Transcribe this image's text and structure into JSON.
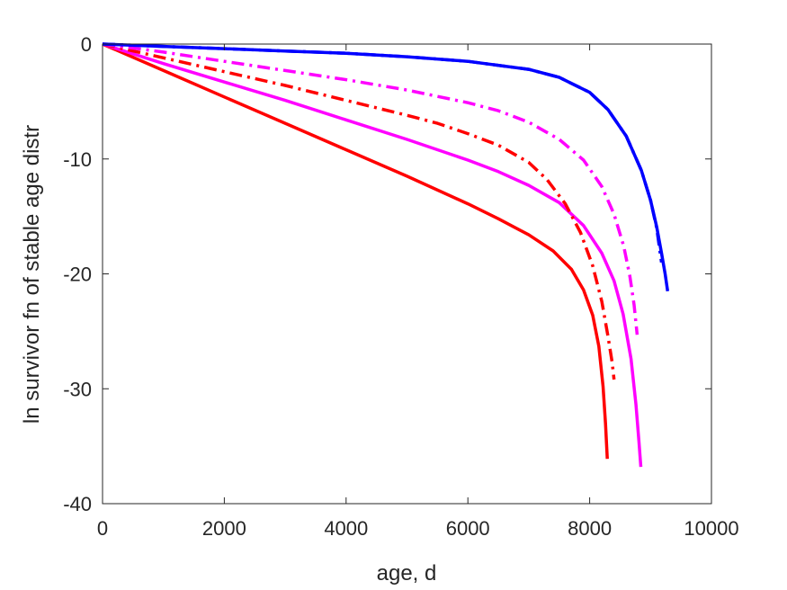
{
  "chart_data": {
    "type": "line",
    "title": "",
    "xlabel": "age, d",
    "ylabel": "ln survivor fn of stable age distr",
    "xlim": [
      0,
      10000
    ],
    "ylim": [
      -40,
      0
    ],
    "xticks": [
      0,
      2000,
      4000,
      6000,
      8000,
      10000
    ],
    "yticks": [
      -40,
      -30,
      -20,
      -10,
      0
    ],
    "xtick_labels": [
      "0",
      "2000",
      "4000",
      "6000",
      "8000",
      "10000"
    ],
    "ytick_labels": [
      "-40",
      "-30",
      "-20",
      "-10",
      "0"
    ],
    "grid": false,
    "legend": "none",
    "series": [
      {
        "color": "#ff0000",
        "style": "solid",
        "points": [
          [
            0,
            0
          ],
          [
            1000,
            -2.3
          ],
          [
            2000,
            -4.6
          ],
          [
            3000,
            -6.9
          ],
          [
            4000,
            -9.2
          ],
          [
            5000,
            -11.5
          ],
          [
            6000,
            -13.9
          ],
          [
            6500,
            -15.2
          ],
          [
            7000,
            -16.6
          ],
          [
            7400,
            -18.0
          ],
          [
            7700,
            -19.6
          ],
          [
            7900,
            -21.4
          ],
          [
            8050,
            -23.6
          ],
          [
            8150,
            -26.3
          ],
          [
            8220,
            -29.8
          ],
          [
            8260,
            -33.0
          ],
          [
            8290,
            -36.1
          ]
        ]
      },
      {
        "color": "#ff00ff",
        "style": "solid",
        "points": [
          [
            0,
            0
          ],
          [
            1000,
            -1.7
          ],
          [
            2000,
            -3.3
          ],
          [
            3000,
            -4.9
          ],
          [
            4000,
            -6.6
          ],
          [
            5000,
            -8.3
          ],
          [
            6000,
            -10.1
          ],
          [
            6500,
            -11.1
          ],
          [
            7000,
            -12.3
          ],
          [
            7500,
            -13.8
          ],
          [
            7900,
            -15.8
          ],
          [
            8200,
            -18.2
          ],
          [
            8400,
            -20.6
          ],
          [
            8550,
            -23.5
          ],
          [
            8680,
            -27.4
          ],
          [
            8760,
            -31.4
          ],
          [
            8810,
            -34.6
          ],
          [
            8840,
            -36.8
          ]
        ]
      },
      {
        "color": "#ff0000",
        "style": "dashdot",
        "points": [
          [
            0,
            0
          ],
          [
            1000,
            -1.2
          ],
          [
            2000,
            -2.4
          ],
          [
            3000,
            -3.6
          ],
          [
            4000,
            -4.9
          ],
          [
            5000,
            -6.2
          ],
          [
            5500,
            -6.9
          ],
          [
            6000,
            -7.8
          ],
          [
            6500,
            -8.8
          ],
          [
            7000,
            -10.3
          ],
          [
            7300,
            -11.8
          ],
          [
            7600,
            -13.9
          ],
          [
            7850,
            -16.4
          ],
          [
            8050,
            -19.3
          ],
          [
            8200,
            -22.4
          ],
          [
            8300,
            -25.4
          ],
          [
            8370,
            -27.7
          ],
          [
            8400,
            -29.2
          ]
        ]
      },
      {
        "color": "#ff00ff",
        "style": "dashdot",
        "points": [
          [
            0,
            0
          ],
          [
            1000,
            -0.7
          ],
          [
            2000,
            -1.5
          ],
          [
            3000,
            -2.3
          ],
          [
            4000,
            -3.1
          ],
          [
            5000,
            -4.0
          ],
          [
            6000,
            -5.1
          ],
          [
            6500,
            -5.8
          ],
          [
            7000,
            -6.8
          ],
          [
            7500,
            -8.3
          ],
          [
            7900,
            -10.1
          ],
          [
            8200,
            -12.4
          ],
          [
            8400,
            -14.8
          ],
          [
            8560,
            -17.6
          ],
          [
            8660,
            -20.2
          ],
          [
            8730,
            -22.7
          ],
          [
            8780,
            -25.3
          ]
        ]
      },
      {
        "color": "#0000ff",
        "style": "dashdot",
        "points": [
          [
            0,
            0
          ],
          [
            1000,
            -0.2
          ],
          [
            2000,
            -0.4
          ],
          [
            3000,
            -0.6
          ],
          [
            4000,
            -0.8
          ],
          [
            5000,
            -1.1
          ],
          [
            6000,
            -1.5
          ],
          [
            7000,
            -2.2
          ],
          [
            7500,
            -2.9
          ],
          [
            8000,
            -4.2
          ],
          [
            8300,
            -5.7
          ],
          [
            8600,
            -8.0
          ],
          [
            8850,
            -11.0
          ],
          [
            9000,
            -13.6
          ],
          [
            9100,
            -16.0
          ],
          [
            9180,
            -19.0
          ]
        ]
      },
      {
        "color": "#0000ff",
        "style": "solid",
        "points": [
          [
            0,
            0
          ],
          [
            1000,
            -0.2
          ],
          [
            2000,
            -0.4
          ],
          [
            3000,
            -0.6
          ],
          [
            4000,
            -0.8
          ],
          [
            5000,
            -1.1
          ],
          [
            6000,
            -1.5
          ],
          [
            7000,
            -2.2
          ],
          [
            7500,
            -2.9
          ],
          [
            8000,
            -4.2
          ],
          [
            8300,
            -5.7
          ],
          [
            8600,
            -8.0
          ],
          [
            8850,
            -11.0
          ],
          [
            9000,
            -13.6
          ],
          [
            9100,
            -15.9
          ],
          [
            9180,
            -18.2
          ],
          [
            9240,
            -20.0
          ],
          [
            9280,
            -21.5
          ]
        ]
      }
    ]
  }
}
